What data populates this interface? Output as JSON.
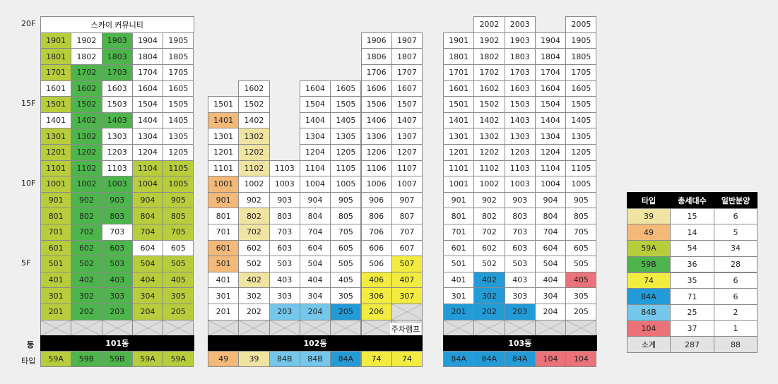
{
  "colors": {
    "39": "#f0e4a2",
    "49": "#f3b978",
    "59A": "#b8cd3c",
    "59B": "#4db54c",
    "74": "#f2ec40",
    "84A": "#239bd7",
    "84B": "#74c7ea",
    "104": "#eb7279",
    "white": "#ffffff",
    "header": "#000000",
    "parking": "#dcdcdc"
  },
  "floor_labels": [
    {
      "text": "20F",
      "floor": 20
    },
    {
      "text": "15F",
      "floor": 15
    },
    {
      "text": "10F",
      "floor": 10
    },
    {
      "text": "5F",
      "floor": 5
    }
  ],
  "row_labels": {
    "dong": "동",
    "type": "타입"
  },
  "buildings": [
    {
      "name": "101동",
      "community_label": "스카이 커뮤니티",
      "columns": [
        "01",
        "02",
        "03",
        "04",
        "05"
      ],
      "floors": [
        {
          "f": 19,
          "units": [
            "59A",
            "white",
            "59B",
            "white",
            "white"
          ]
        },
        {
          "f": 18,
          "units": [
            "59A",
            "white",
            "59B",
            "white",
            "white"
          ]
        },
        {
          "f": 17,
          "units": [
            "59A",
            "59B",
            "59B",
            "white",
            "white"
          ]
        },
        {
          "f": 16,
          "units": [
            "white",
            "59B",
            "white",
            "white",
            "white"
          ]
        },
        {
          "f": 15,
          "units": [
            "59A",
            "59B",
            "white",
            "white",
            "white"
          ]
        },
        {
          "f": 14,
          "units": [
            "white",
            "59B",
            "59B",
            "white",
            "white"
          ]
        },
        {
          "f": 13,
          "units": [
            "59A",
            "59B",
            "white",
            "white",
            "white"
          ]
        },
        {
          "f": 12,
          "units": [
            "59A",
            "59B",
            "white",
            "white",
            "white"
          ]
        },
        {
          "f": 11,
          "units": [
            "59A",
            "59B",
            "white",
            "59A",
            "59A"
          ]
        },
        {
          "f": 10,
          "units": [
            "59A",
            "59B",
            "59B",
            "59A",
            "59A"
          ]
        },
        {
          "f": 9,
          "units": [
            "59A",
            "59B",
            "59B",
            "59A",
            "59A"
          ]
        },
        {
          "f": 8,
          "units": [
            "59A",
            "59B",
            "59B",
            "59A",
            "59A"
          ]
        },
        {
          "f": 7,
          "units": [
            "59A",
            "59B",
            "white",
            "59A",
            "59A"
          ]
        },
        {
          "f": 6,
          "units": [
            "59A",
            "59B",
            "59B",
            "white",
            "white"
          ]
        },
        {
          "f": 5,
          "units": [
            "59A",
            "59B",
            "59B",
            "59A",
            "59A"
          ]
        },
        {
          "f": 4,
          "units": [
            "59A",
            "59B",
            "59B",
            "59A",
            "59A"
          ]
        },
        {
          "f": 3,
          "units": [
            "59A",
            "59B",
            "59B",
            "59A",
            "59A"
          ]
        },
        {
          "f": 2,
          "units": [
            "59A",
            "59B",
            "59B",
            "59A",
            "59A"
          ]
        }
      ],
      "types": [
        "59A",
        "59B",
        "59B",
        "59A",
        "59A"
      ]
    },
    {
      "name": "102동",
      "parking_label": "주차램프",
      "columns": [
        "01",
        "02",
        "03",
        "04",
        "05",
        "06",
        "07"
      ],
      "floors": [
        {
          "f": 19,
          "units": [
            null,
            null,
            null,
            null,
            null,
            "white",
            "white"
          ]
        },
        {
          "f": 18,
          "units": [
            null,
            null,
            null,
            null,
            null,
            "white",
            "white"
          ]
        },
        {
          "f": 17,
          "units": [
            null,
            null,
            null,
            null,
            null,
            "white",
            "white"
          ]
        },
        {
          "f": 16,
          "units": [
            null,
            "white",
            null,
            "white",
            "white",
            "white",
            "white"
          ]
        },
        {
          "f": 15,
          "units": [
            "white",
            "white",
            null,
            "white",
            "white",
            "white",
            "white"
          ]
        },
        {
          "f": 14,
          "units": [
            "49",
            "white",
            null,
            "white",
            "white",
            "white",
            "white"
          ]
        },
        {
          "f": 13,
          "units": [
            "white",
            "39",
            null,
            "white",
            "white",
            "white",
            "white"
          ]
        },
        {
          "f": 12,
          "units": [
            "white",
            "39",
            null,
            "white",
            "white",
            "white",
            "white"
          ]
        },
        {
          "f": 11,
          "units": [
            "white",
            "39",
            "white",
            "white",
            "white",
            "white",
            "white"
          ]
        },
        {
          "f": 10,
          "units": [
            "49",
            "white",
            "white",
            "white",
            "white",
            "white",
            "white"
          ]
        },
        {
          "f": 9,
          "units": [
            "49",
            "white",
            "white",
            "white",
            "white",
            "white",
            "white"
          ]
        },
        {
          "f": 8,
          "units": [
            "white",
            "39",
            "white",
            "white",
            "white",
            "white",
            "white"
          ]
        },
        {
          "f": 7,
          "units": [
            "white",
            "39",
            "white",
            "white",
            "white",
            "white",
            "white"
          ]
        },
        {
          "f": 6,
          "units": [
            "49",
            "white",
            "white",
            "white",
            "white",
            "white",
            "white"
          ]
        },
        {
          "f": 5,
          "units": [
            "49",
            "white",
            "white",
            "white",
            "white",
            "white",
            "74"
          ]
        },
        {
          "f": 4,
          "units": [
            "white",
            "39",
            "white",
            "white",
            "white",
            "74",
            "74"
          ]
        },
        {
          "f": 3,
          "units": [
            "white",
            "white",
            "white",
            "white",
            "white",
            "74",
            "74"
          ]
        },
        {
          "f": 2,
          "units": [
            "white",
            "white",
            "84B",
            "84B",
            "84A",
            "74",
            "parking"
          ]
        }
      ],
      "types": [
        "49",
        "39",
        "84B",
        "84B",
        "84A",
        "74",
        "74"
      ]
    },
    {
      "name": "103동",
      "columns": [
        "01",
        "02",
        "03",
        "04",
        "05"
      ],
      "floors": [
        {
          "f": 20,
          "units": [
            null,
            "white",
            "white",
            null,
            "white"
          ]
        },
        {
          "f": 19,
          "units": [
            "white",
            "white",
            "white",
            "white",
            "white"
          ]
        },
        {
          "f": 18,
          "units": [
            "white",
            "white",
            "white",
            "white",
            "white"
          ]
        },
        {
          "f": 17,
          "units": [
            "white",
            "white",
            "white",
            "white",
            "white"
          ]
        },
        {
          "f": 16,
          "units": [
            "white",
            "white",
            "white",
            "white",
            "white"
          ]
        },
        {
          "f": 15,
          "units": [
            "white",
            "white",
            "white",
            "white",
            "white"
          ]
        },
        {
          "f": 14,
          "units": [
            "white",
            "white",
            "white",
            "white",
            "white"
          ]
        },
        {
          "f": 13,
          "units": [
            "white",
            "white",
            "white",
            "white",
            "white"
          ]
        },
        {
          "f": 12,
          "units": [
            "white",
            "white",
            "white",
            "white",
            "white"
          ]
        },
        {
          "f": 11,
          "units": [
            "white",
            "white",
            "white",
            "white",
            "white"
          ]
        },
        {
          "f": 10,
          "units": [
            "white",
            "white",
            "white",
            "white",
            "white"
          ]
        },
        {
          "f": 9,
          "units": [
            "white",
            "white",
            "white",
            "white",
            "white"
          ]
        },
        {
          "f": 8,
          "units": [
            "white",
            "white",
            "white",
            "white",
            "white"
          ]
        },
        {
          "f": 7,
          "units": [
            "white",
            "white",
            "white",
            "white",
            "white"
          ]
        },
        {
          "f": 6,
          "units": [
            "white",
            "white",
            "white",
            "white",
            "white"
          ]
        },
        {
          "f": 5,
          "units": [
            "white",
            "white",
            "white",
            "white",
            "white"
          ]
        },
        {
          "f": 4,
          "units": [
            "white",
            "84A",
            "white",
            "white",
            "104"
          ]
        },
        {
          "f": 3,
          "units": [
            "white",
            "84A",
            "white",
            "white",
            "white"
          ]
        },
        {
          "f": 2,
          "units": [
            "84A",
            "84A",
            "84A",
            "white",
            "white"
          ]
        }
      ],
      "types": [
        "84A",
        "84A",
        "84A",
        "104",
        "104"
      ]
    }
  ],
  "summary": {
    "headers": [
      "타입",
      "총세대수",
      "일반분양"
    ],
    "rows": [
      {
        "type": "39",
        "total": "15",
        "general": "6"
      },
      {
        "type": "49",
        "total": "14",
        "general": "5"
      },
      {
        "type": "59A",
        "total": "54",
        "general": "34"
      },
      {
        "type": "59B",
        "total": "36",
        "general": "28"
      },
      {
        "type": "74",
        "total": "35",
        "general": "6"
      },
      {
        "type": "84A",
        "total": "71",
        "general": "6"
      },
      {
        "type": "84B",
        "total": "25",
        "general": "2"
      },
      {
        "type": "104",
        "total": "37",
        "general": "1"
      }
    ],
    "subtotal": {
      "label": "소계",
      "total": "287",
      "general": "88"
    }
  }
}
